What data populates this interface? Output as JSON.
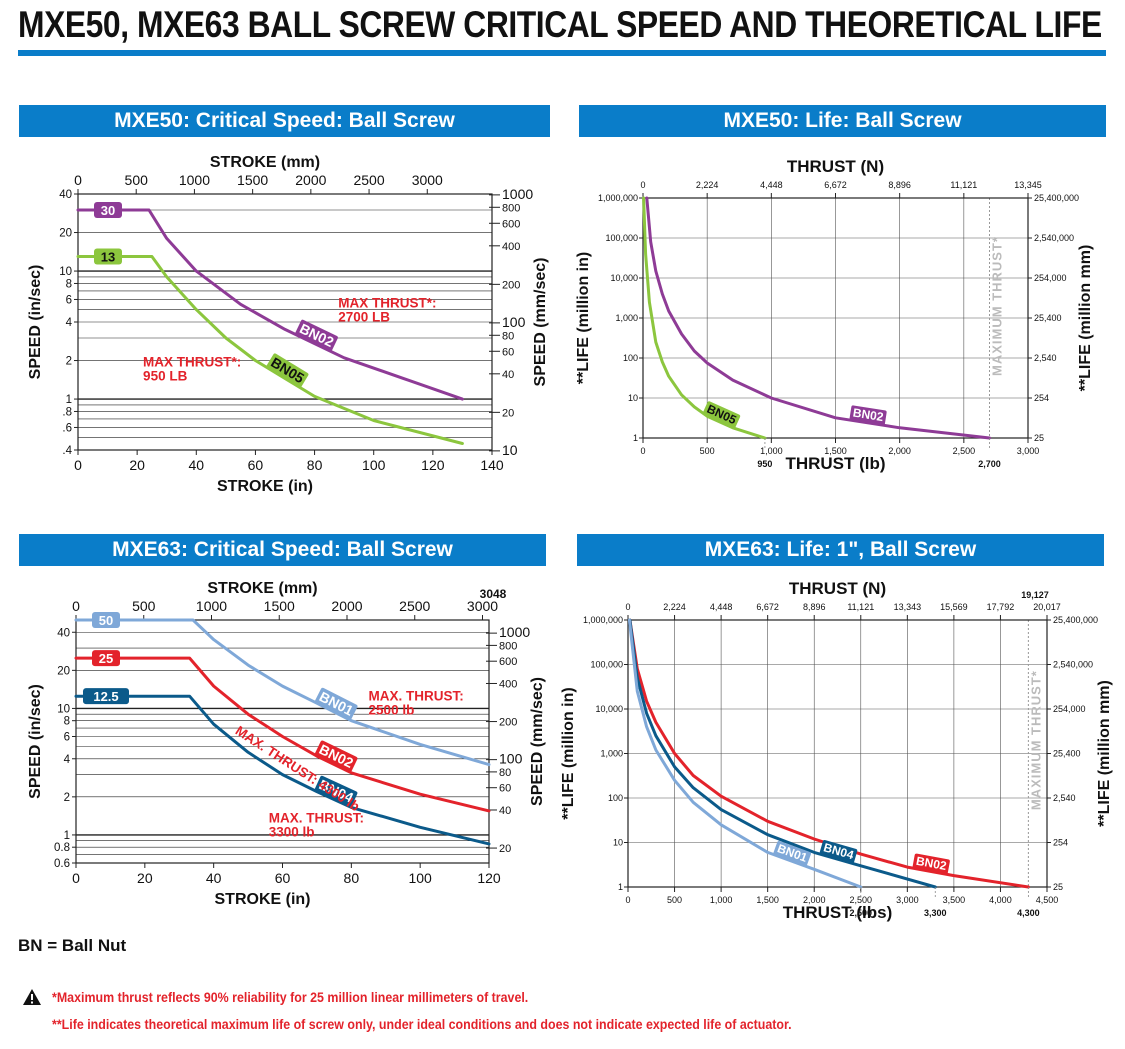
{
  "page": {
    "title": "MXE50, MXE63 BALL SCREW CRITICAL SPEED AND THEORETICAL LIFE",
    "legend_key": "BN = Ball Nut",
    "notes": [
      "*Maximum thrust reflects 90% reliability for 25 million linear millimeters of travel.",
      "**Life indicates theoretical maximum life of screw only, under ideal conditions and does not indicate expected life of actuator."
    ]
  },
  "colors": {
    "header_bg": "#0a7dc9",
    "purple": "#8e3b96",
    "green": "#8cc63e",
    "light_blue": "#7fa8d8",
    "red": "#e3232b",
    "dark_blue": "#0b5a8a",
    "gray": "#bbbbbb"
  },
  "chart_data": [
    {
      "id": "mxe50-speed",
      "type": "line",
      "title": "MXE50: Critical Speed: Ball Screw",
      "xlabel": "STROKE (in)",
      "x2label": "STROKE (mm)",
      "ylabel": "SPEED (in/sec)",
      "y2label": "SPEED (mm/sec)",
      "xscale": "linear",
      "yscale": "log",
      "xlim": [
        0,
        140
      ],
      "ylim": [
        0.4,
        40
      ],
      "x_ticks": [
        0,
        20,
        40,
        60,
        80,
        100,
        120,
        140
      ],
      "x_tick_labels": [
        "0",
        "20",
        "40",
        "60",
        "80",
        "100",
        "120",
        "140"
      ],
      "x2_ticks": [
        0,
        500,
        1000,
        1500,
        2000,
        2500,
        3000
      ],
      "x2_tick_labels": [
        "0",
        "500",
        "1000",
        "1500",
        "2000",
        "2500",
        "3000"
      ],
      "y_ticks": [
        0.4,
        0.6,
        0.8,
        1,
        2,
        4,
        6,
        8,
        10,
        20,
        40
      ],
      "y_tick_labels": [
        ".4",
        ".6",
        ".8",
        "1",
        "2",
        "4",
        "6",
        "8",
        "10",
        "20",
        "40"
      ],
      "y2_ticks": [
        10,
        20,
        40,
        60,
        80,
        100,
        200,
        400,
        600,
        800,
        1000
      ],
      "y2_tick_labels": [
        "10",
        "20",
        "40",
        "60",
        "80",
        "100",
        "200",
        "400",
        "600",
        "800",
        "1000"
      ],
      "grid": "horizontal",
      "series": [
        {
          "name": "BN02",
          "color": "purple",
          "start_label": "30",
          "x": [
            0,
            24,
            30,
            40,
            55,
            70,
            90,
            110,
            130
          ],
          "y": [
            30,
            30,
            18,
            10,
            5.5,
            3.5,
            2.1,
            1.45,
            1.0
          ]
        },
        {
          "name": "BN05",
          "color": "green",
          "start_label": "13",
          "x": [
            0,
            25,
            30,
            40,
            50,
            60,
            80,
            100,
            130
          ],
          "y": [
            13,
            13,
            9,
            5,
            3,
            2,
            1.05,
            0.68,
            0.45
          ]
        }
      ],
      "annotations": [
        {
          "text": [
            "MAX THRUST*:",
            "2700 LB"
          ],
          "x": 88,
          "y": 5.2,
          "color": "red"
        },
        {
          "text": [
            "MAX THRUST*:",
            "950 LB"
          ],
          "x": 22,
          "y": 1.8,
          "color": "red"
        }
      ]
    },
    {
      "id": "mxe50-life",
      "type": "line",
      "title": "MXE50: Life: Ball Screw",
      "xlabel": "THRUST (lb)",
      "x2label": "THRUST (N)",
      "ylabel": "**LIFE (million in)",
      "y2label": "**LIFE (million mm)",
      "xscale": "linear",
      "yscale": "log",
      "xlim": [
        0,
        3000
      ],
      "ylim": [
        1,
        1000000
      ],
      "x_ticks": [
        0,
        500,
        1000,
        1500,
        2000,
        2500,
        3000
      ],
      "x_tick_labels": [
        "0",
        "500",
        "1,000",
        "1,500",
        "2,000",
        "2,500",
        "3,000"
      ],
      "x2_ticks": [
        0,
        500,
        1000,
        1500,
        2000,
        2500,
        3000
      ],
      "x2_tick_labels": [
        "0",
        "2,224",
        "4,448",
        "6,672",
        "8,896",
        "11,121",
        "13,345"
      ],
      "y_ticks": [
        1,
        10,
        100,
        1000,
        10000,
        100000,
        1000000
      ],
      "y_tick_labels": [
        "1",
        "10",
        "100",
        "1,000",
        "10,000",
        "100,000",
        "1,000,000"
      ],
      "y2_tick_labels": [
        "25",
        "254",
        "2,540",
        "25,400",
        "254,000",
        "2,540,000",
        "25,400,000"
      ],
      "grid": "both",
      "max_thrust_label": "MAXIMUM THRUST*",
      "max_thrust_x": 2700,
      "series": [
        {
          "name": "BN02",
          "color": "purple",
          "end_label": "2,700",
          "x": [
            30,
            60,
            100,
            150,
            200,
            300,
            400,
            500,
            700,
            1000,
            1500,
            2000,
            2700
          ],
          "y": [
            1000000,
            80000,
            15000,
            4000,
            1500,
            400,
            150,
            75,
            28,
            10,
            3.2,
            1.8,
            1
          ]
        },
        {
          "name": "BN05",
          "color": "green",
          "end_label": "950",
          "x": [
            5,
            20,
            50,
            100,
            150,
            200,
            300,
            400,
            500,
            700,
            950
          ],
          "y": [
            1000000,
            40000,
            2500,
            250,
            80,
            35,
            12,
            6,
            3.5,
            1.8,
            1
          ]
        }
      ]
    },
    {
      "id": "mxe63-speed",
      "type": "line",
      "title": "MXE63: Critical Speed: Ball Screw",
      "xlabel": "STROKE (in)",
      "x2label": "STROKE (mm)",
      "ylabel": "SPEED (in/sec)",
      "y2label": "SPEED (mm/sec)",
      "xscale": "linear",
      "yscale": "log",
      "xlim": [
        0,
        120
      ],
      "ylim": [
        0.6,
        50
      ],
      "x_ticks": [
        0,
        20,
        40,
        60,
        80,
        100,
        120
      ],
      "x_tick_labels": [
        "0",
        "20",
        "40",
        "60",
        "80",
        "100",
        "120"
      ],
      "x2_ticks": [
        0,
        500,
        1000,
        1500,
        2000,
        2500,
        3000
      ],
      "x2_tick_labels": [
        "0",
        "500",
        "1000",
        "1500",
        "2000",
        "2500",
        "3000"
      ],
      "x2_extra_label": "3048",
      "y_ticks": [
        0.6,
        0.8,
        1,
        2,
        4,
        6,
        8,
        10,
        20,
        40
      ],
      "y_tick_labels": [
        "0.6",
        "0.8",
        "1",
        "2",
        "4",
        "6",
        "8",
        "10",
        "20",
        "40"
      ],
      "y2_ticks": [
        20,
        40,
        60,
        80,
        100,
        200,
        400,
        600,
        800,
        1000
      ],
      "y2_tick_labels": [
        "20",
        "40",
        "60",
        "80",
        "100",
        "200",
        "400",
        "600",
        "800",
        "1000"
      ],
      "grid": "horizontal",
      "series": [
        {
          "name": "BN01",
          "color": "light_blue",
          "start_label": "50",
          "x": [
            0,
            34,
            40,
            50,
            60,
            70,
            80,
            100,
            120
          ],
          "y": [
            50,
            50,
            35,
            22,
            15,
            11,
            8,
            5.2,
            3.6
          ]
        },
        {
          "name": "BN02",
          "color": "red",
          "start_label": "25",
          "x": [
            0,
            33,
            40,
            50,
            60,
            70,
            80,
            100,
            120
          ],
          "y": [
            25,
            25,
            15,
            9,
            6,
            4.2,
            3.1,
            2.1,
            1.55
          ]
        },
        {
          "name": "BN04",
          "color": "dark_blue",
          "start_label": "12.5",
          "x": [
            0,
            33,
            40,
            50,
            60,
            70,
            80,
            100,
            120
          ],
          "y": [
            12.5,
            12.5,
            7.5,
            4.5,
            3,
            2.2,
            1.65,
            1.15,
            0.85
          ]
        }
      ],
      "annotations": [
        {
          "text": [
            "MAX. THRUST:",
            "2500 lb"
          ],
          "x": 85,
          "y": 11.5,
          "color": "red"
        },
        {
          "text": [
            "MAX. THRUST: 4300 lb"
          ],
          "x": 46,
          "y": 6.4,
          "color": "red",
          "angle": 33
        },
        {
          "text": [
            "MAX. THRUST:",
            "3300 lb"
          ],
          "x": 56,
          "y": 1.25,
          "color": "red"
        }
      ]
    },
    {
      "id": "mxe63-life",
      "type": "line",
      "title": "MXE63: Life: 1\", Ball Screw",
      "xlabel": "THRUST (lbs)",
      "x2label": "THRUST (N)",
      "ylabel": "**LIFE (million in)",
      "y2label": "**LIFE (million mm)",
      "xscale": "linear",
      "yscale": "log",
      "xlim": [
        0,
        4500
      ],
      "ylim": [
        1,
        1000000
      ],
      "x_ticks": [
        0,
        500,
        1000,
        1500,
        2000,
        2500,
        3000,
        3500,
        4000,
        4500
      ],
      "x_tick_labels": [
        "0",
        "500",
        "1,000",
        "1,500",
        "2,000",
        "2,500",
        "3,000",
        "3,500",
        "4,000",
        "4,500"
      ],
      "x2_ticks": [
        0,
        500,
        1000,
        1500,
        2000,
        2500,
        3000,
        3500,
        4000,
        4500
      ],
      "x2_tick_labels": [
        "0",
        "2,224",
        "4,448",
        "6,672",
        "8,896",
        "11,121",
        "13,343",
        "15,569",
        "17,792",
        "20,017"
      ],
      "x2_extra_label": "19,127",
      "y_ticks": [
        1,
        10,
        100,
        1000,
        10000,
        100000,
        1000000
      ],
      "y_tick_labels": [
        "1",
        "10",
        "100",
        "1,000",
        "10,000",
        "100,000",
        "1,000,000"
      ],
      "y2_tick_labels": [
        "25",
        "254",
        "2,540",
        "25,400",
        "254,000",
        "2,540,000",
        "25,400,000"
      ],
      "grid": "both",
      "max_thrust_label": "MAXIMUM THRUST*",
      "max_thrust_x": 4300,
      "series": [
        {
          "name": "BN02",
          "color": "red",
          "end_label": "4,300",
          "x": [
            20,
            100,
            200,
            300,
            500,
            700,
            1000,
            1500,
            2000,
            2500,
            3000,
            3500,
            4300
          ],
          "y": [
            1000000,
            80000,
            15000,
            5000,
            1000,
            320,
            110,
            30,
            12,
            5.5,
            2.8,
            1.8,
            1
          ]
        },
        {
          "name": "BN04",
          "color": "dark_blue",
          "end_label": "3,300",
          "x": [
            20,
            100,
            200,
            300,
            500,
            700,
            1000,
            1500,
            2000,
            2500,
            3300
          ],
          "y": [
            1000000,
            50000,
            8000,
            2500,
            500,
            170,
            55,
            15,
            6,
            3,
            1
          ]
        },
        {
          "name": "BN01",
          "color": "light_blue",
          "end_label": "2,500",
          "x": [
            15,
            100,
            200,
            300,
            500,
            700,
            1000,
            1500,
            2000,
            2500
          ],
          "y": [
            1000000,
            25000,
            4000,
            1200,
            250,
            80,
            25,
            6,
            2.5,
            1
          ]
        }
      ]
    }
  ]
}
